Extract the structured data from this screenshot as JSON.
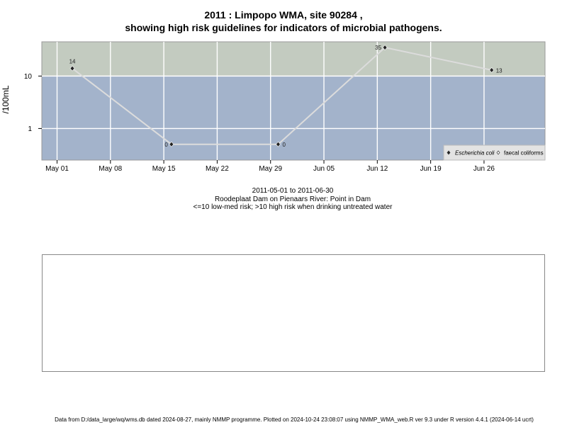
{
  "title_line1": "2011 : Limpopo WMA, site 90284 ,",
  "title_line2": "showing high risk guidelines for indicators of microbial pathogens.",
  "subtitle": {
    "date_range": "2011-05-01 to 2011-06-30",
    "location": "Roodeplaat Dam on Pienaars River: Point in Dam",
    "risk_note": "<=10 low-med risk; >10 high risk when drinking untreated water"
  },
  "footer": "Data from D:/data_large/wq/wms.db dated 2024-08-27, mainly NMMP programme. Plotted on 2024-10-24 23:08:07 using NMMP_WMA_web.R ver 9.3 under R version 4.4.1 (2024-06-14 ucrt)",
  "chart_data": {
    "type": "line",
    "ylabel": "/100mL",
    "y_scale": "log",
    "y_ticks": [
      {
        "value": 1,
        "label": "1"
      },
      {
        "value": 10,
        "label": "10"
      }
    ],
    "x_ticks": [
      "May 01",
      "May 08",
      "May 15",
      "May 22",
      "May 29",
      "Jun 05",
      "Jun 12",
      "Jun 19",
      "Jun 26"
    ],
    "x_range": [
      "2011-04-29",
      "2011-07-04"
    ],
    "guideline": 10,
    "colors": {
      "high_risk_band": "#c3cbc0",
      "low_risk_band": "#a3b3cb",
      "line": "#dcdcdc",
      "grid": "#ffffff"
    },
    "series": [
      {
        "name": "Escherichia coli",
        "marker": "filled-diamond",
        "points": [
          {
            "x": "2011-05-03",
            "y": 14,
            "label": "14"
          },
          {
            "x": "2011-05-16",
            "y": 0.5,
            "label": "0"
          },
          {
            "x": "2011-05-30",
            "y": 0.5,
            "label": "0"
          },
          {
            "x": "2011-06-13",
            "y": 35,
            "label": "35"
          },
          {
            "x": "2011-06-27",
            "y": 13,
            "label": "13"
          }
        ]
      },
      {
        "name": "faecal coliforms",
        "marker": "open-diamond",
        "points": []
      }
    ],
    "legend_position": "bottom-right",
    "grid": true
  }
}
